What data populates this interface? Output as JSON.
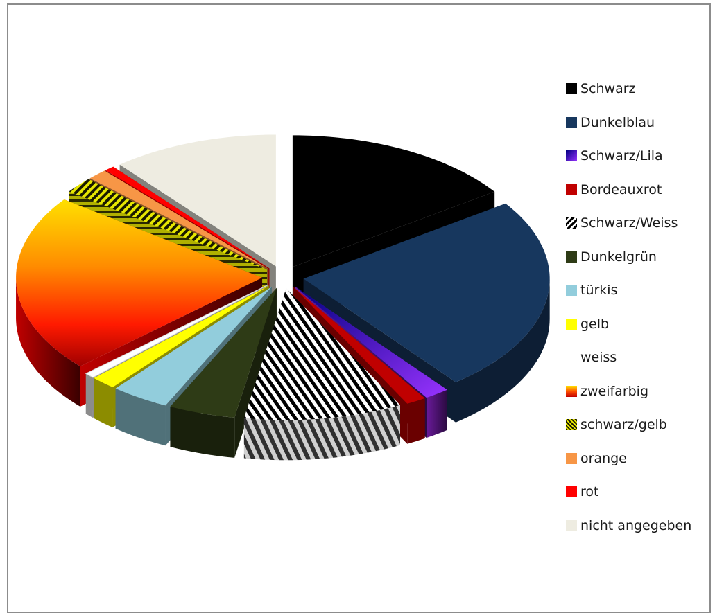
{
  "chart_data": {
    "type": "pie",
    "variant": "3d-exploded",
    "title": "",
    "legend_position": "right",
    "slices": [
      {
        "label": "Schwarz",
        "value": 14.0,
        "color": "#000000",
        "pattern": "solid"
      },
      {
        "label": "Dunkelblau",
        "value": 22.0,
        "color": "#17375e",
        "pattern": "solid"
      },
      {
        "label": "Schwarz/Lila",
        "value": 1.5,
        "color": "#1a1aa8",
        "pattern": "gradient-purple"
      },
      {
        "label": "Bordeauxrot",
        "value": 1.2,
        "color": "#c00000",
        "pattern": "solid"
      },
      {
        "label": "Schwarz/Weiss",
        "value": 9.5,
        "color": "#000000",
        "pattern": "stripes-bw"
      },
      {
        "label": "Dunkelgrün",
        "value": 4.0,
        "color": "#2e3b16",
        "pattern": "solid"
      },
      {
        "label": "türkis",
        "value": 3.5,
        "color": "#92cddc",
        "pattern": "solid"
      },
      {
        "label": "gelb",
        "value": 1.5,
        "color": "#ffff00",
        "pattern": "solid"
      },
      {
        "label": "weiss",
        "value": 0.6,
        "color": "#ffffff",
        "pattern": "solid"
      },
      {
        "label": "zweifarbig",
        "value": 20.0,
        "color": "#ff3300",
        "pattern": "gradient-fire"
      },
      {
        "label": "schwarz/gelb",
        "value": 1.8,
        "color": "#d4d400",
        "pattern": "stripes-by"
      },
      {
        "label": "orange",
        "value": 1.2,
        "color": "#f79646",
        "pattern": "solid"
      },
      {
        "label": "rot",
        "value": 0.6,
        "color": "#ff0000",
        "pattern": "solid"
      },
      {
        "label": "nicht angegeben",
        "value": 10.0,
        "color": "#eeece1",
        "pattern": "solid"
      }
    ]
  }
}
